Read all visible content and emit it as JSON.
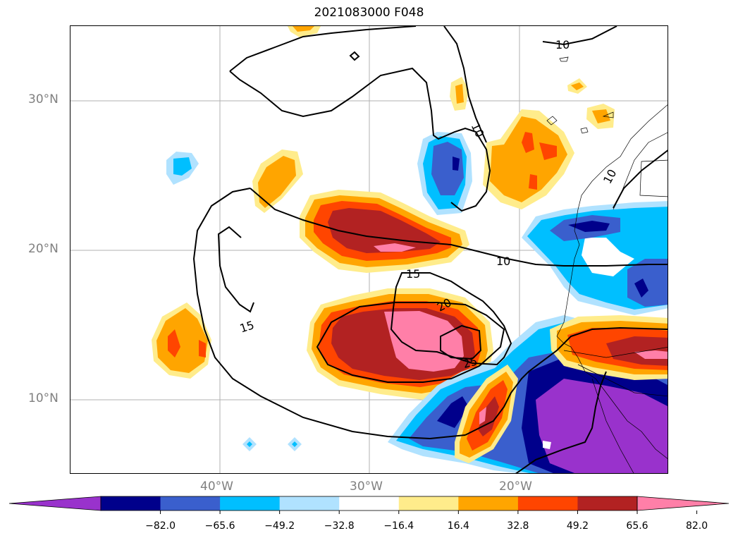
{
  "title": "2021083000 F048",
  "lat_labels": [
    "30°N",
    "20°N",
    "10°N"
  ],
  "lon_labels": [
    "40°W",
    "30°W",
    "20°W"
  ],
  "contour_labels": [
    "10",
    "10",
    "10",
    "10",
    "15",
    "15",
    "20",
    "25"
  ],
  "colorbar": {
    "colors": [
      "#9932CC",
      "#00008B",
      "#3A5FCD",
      "#00BFFF",
      "#B0E2FF",
      "#FFFFFF",
      "#FFEC8B",
      "#FFA500",
      "#FF4500",
      "#B22222",
      "#FF7FA8"
    ],
    "ticks": [
      "−82.0",
      "−65.6",
      "−49.2",
      "−32.8",
      "−16.4",
      "16.4",
      "32.8",
      "49.2",
      "65.6",
      "82.0"
    ],
    "extend": "both"
  }
}
